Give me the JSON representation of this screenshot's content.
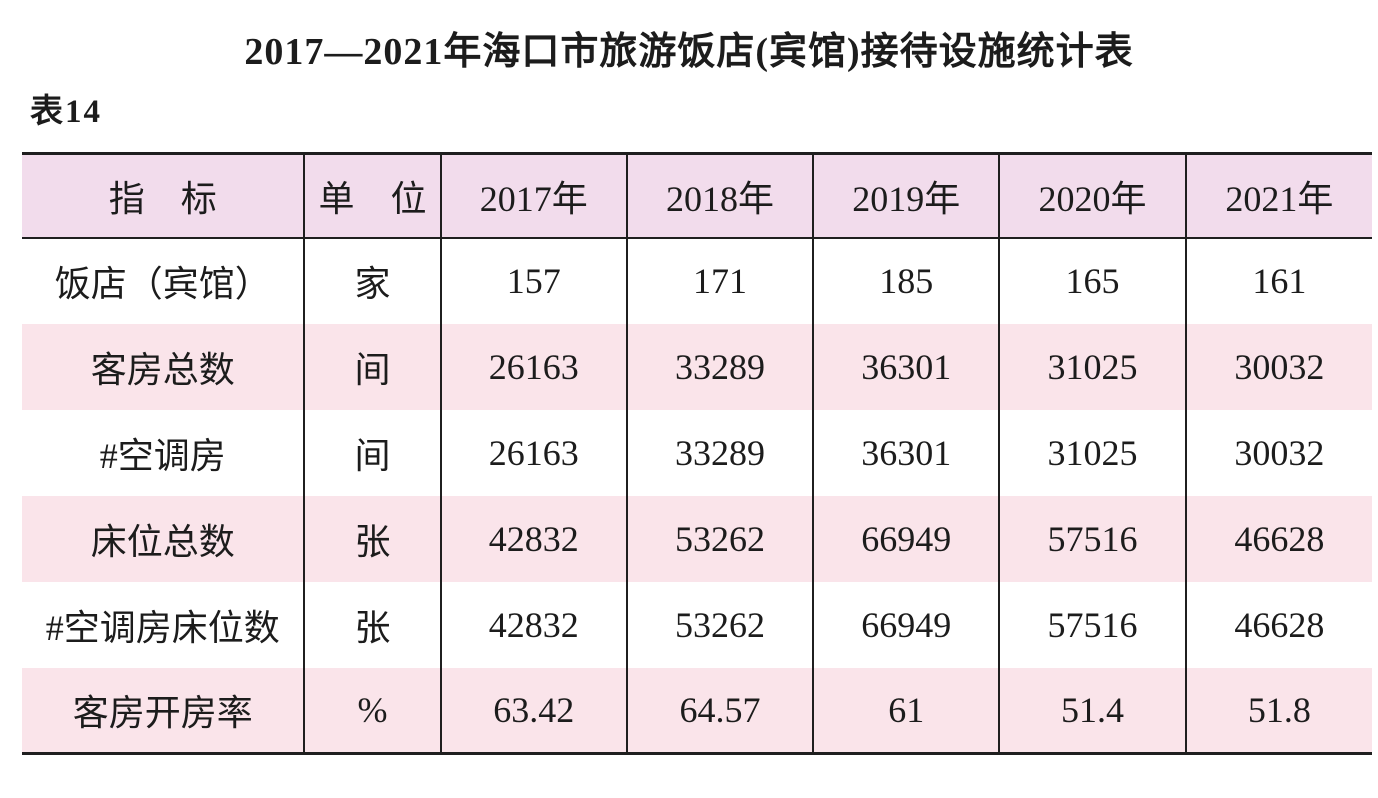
{
  "page": {
    "title": "2017—2021年海口市旅游饭店(宾馆)接待设施统计表",
    "table_label": "表14"
  },
  "colors": {
    "header_bg": "#f2dcec",
    "row_alt_bg": "#fae4ea",
    "border": "#1f1f1f",
    "text": "#1c1c1c",
    "page_bg": "#ffffff"
  },
  "table": {
    "headers": [
      "指　标",
      "单　位",
      "2017年",
      "2018年",
      "2019年",
      "2020年",
      "2021年"
    ],
    "rows": [
      [
        "饭店（宾馆）",
        "家",
        "157",
        "171",
        "185",
        "165",
        "161"
      ],
      [
        "客房总数",
        "间",
        "26163",
        "33289",
        "36301",
        "31025",
        "30032"
      ],
      [
        "#空调房",
        "间",
        "26163",
        "33289",
        "36301",
        "31025",
        "30032"
      ],
      [
        "床位总数",
        "张",
        "42832",
        "53262",
        "66949",
        "57516",
        "46628"
      ],
      [
        "#空调房床位数",
        "张",
        "42832",
        "53262",
        "66949",
        "57516",
        "46628"
      ],
      [
        "客房开房率",
        "%",
        "63.42",
        "64.57",
        "61",
        "51.4",
        "51.8"
      ]
    ]
  },
  "chart_data": {
    "type": "table",
    "title": "2017—2021年海口市旅游饭店(宾馆)接待设施统计表",
    "label": "表14",
    "columns": [
      "指标",
      "单位",
      "2017年",
      "2018年",
      "2019年",
      "2020年",
      "2021年"
    ],
    "rows": [
      {
        "indicator": "饭店（宾馆）",
        "unit": "家",
        "values": [
          157,
          171,
          185,
          165,
          161
        ]
      },
      {
        "indicator": "客房总数",
        "unit": "间",
        "values": [
          26163,
          33289,
          36301,
          31025,
          30032
        ]
      },
      {
        "indicator": "#空调房",
        "unit": "间",
        "values": [
          26163,
          33289,
          36301,
          31025,
          30032
        ]
      },
      {
        "indicator": "床位总数",
        "unit": "张",
        "values": [
          42832,
          53262,
          66949,
          57516,
          46628
        ]
      },
      {
        "indicator": "#空调房床位数",
        "unit": "张",
        "values": [
          42832,
          53262,
          66949,
          57516,
          46628
        ]
      },
      {
        "indicator": "客房开房率",
        "unit": "%",
        "values": [
          63.42,
          64.57,
          61,
          51.4,
          51.8
        ]
      }
    ]
  }
}
